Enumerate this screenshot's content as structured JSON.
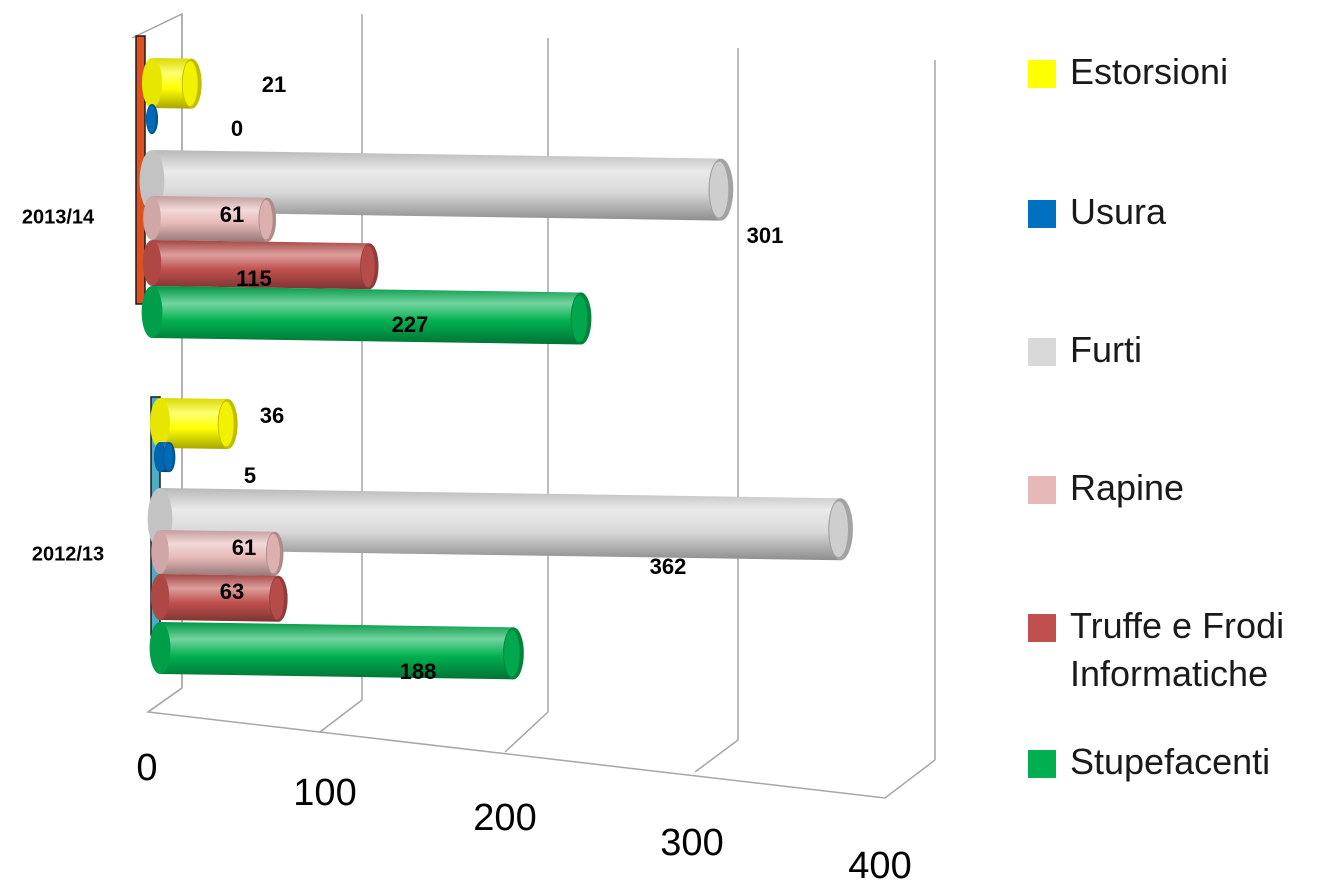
{
  "chart_data": {
    "type": "bar",
    "orientation": "horizontal",
    "style": "3d-cylinder",
    "categories": [
      "2012/13",
      "2013/14"
    ],
    "series": [
      {
        "name": "Estorsioni",
        "color": "#ffff00",
        "values": [
          36,
          21
        ]
      },
      {
        "name": "Usura",
        "color": "#0070c0",
        "values": [
          5,
          0
        ]
      },
      {
        "name": "Furti",
        "color": "#d9d9d9",
        "values": [
          362,
          301
        ]
      },
      {
        "name": "Rapine",
        "color": "#e6b9b8",
        "values": [
          61,
          61
        ]
      },
      {
        "name": "Truffe e Frodi\nInformatiche",
        "color": "#c0504d",
        "values": [
          63,
          115
        ]
      },
      {
        "name": "Stupefacenti",
        "color": "#00b050",
        "values": [
          188,
          227
        ]
      }
    ],
    "xlim": [
      0,
      400
    ],
    "x_ticks": [
      "0",
      "100",
      "200",
      "300",
      "400"
    ],
    "category_marker_colors": {
      "2013/14": "#e0501e",
      "2012/13": "#4bacc6"
    },
    "grid": true,
    "legend": "right"
  }
}
